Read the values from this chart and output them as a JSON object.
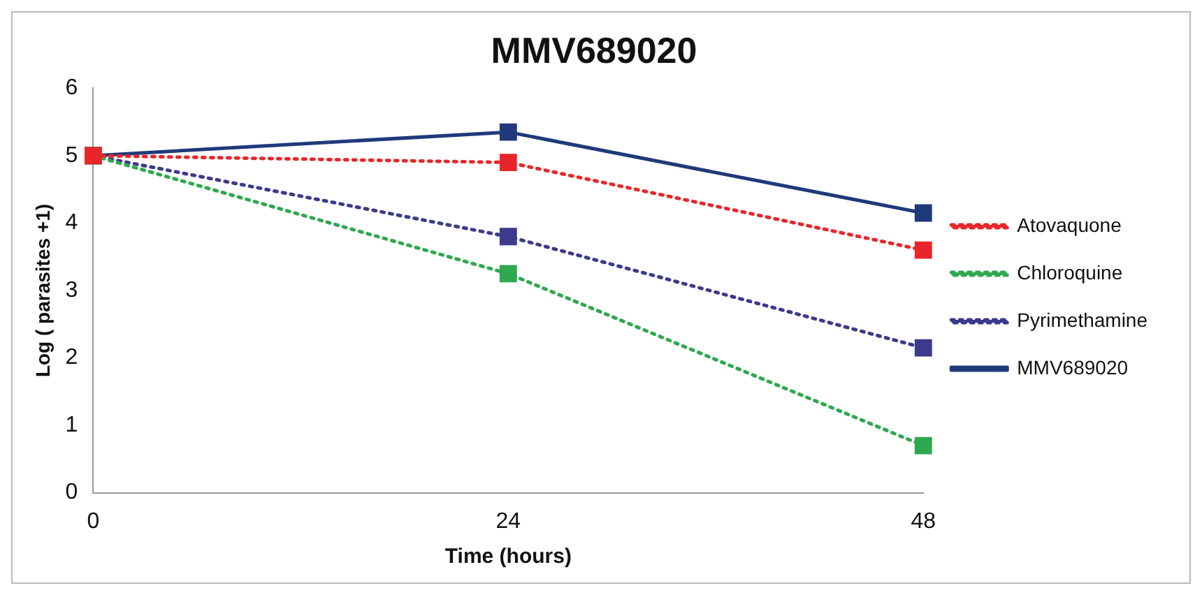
{
  "chart_data": {
    "type": "line",
    "title": "MMV689020",
    "xlabel": "Time (hours)",
    "ylabel": "Log ( parasites +1)",
    "x": [
      0,
      24,
      48
    ],
    "xlim": [
      0,
      48
    ],
    "xticks": [
      0,
      24,
      48
    ],
    "ylim": [
      0,
      6
    ],
    "yticks": [
      0,
      1,
      2,
      3,
      4,
      5,
      6
    ],
    "grid": false,
    "legend": "right",
    "marker": "square",
    "series": [
      {
        "name": "Atovaquone",
        "color": "#e8262a",
        "line_style": "dotted",
        "values": [
          5,
          4.9,
          3.6
        ]
      },
      {
        "name": "Chloroquine",
        "color": "#2fa84f",
        "line_style": "dotted",
        "values": [
          5,
          3.25,
          0.7
        ]
      },
      {
        "name": "Pyrimethamine",
        "color": "#3c3a8c",
        "line_style": "dotted",
        "values": [
          5,
          3.8,
          2.15
        ]
      },
      {
        "name": "MMV689020",
        "color": "#1f3a7a",
        "line_style": "solid",
        "values": [
          5,
          5.35,
          4.15
        ]
      }
    ]
  }
}
